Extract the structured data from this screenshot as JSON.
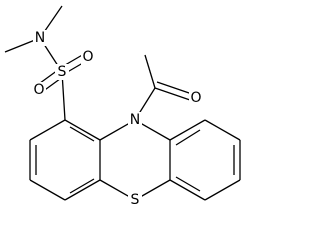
{
  "atoms": [
    {
      "label": "N"
    },
    {
      "label": "S"
    },
    {
      "label": "O"
    },
    {
      "label": "O"
    },
    {
      "label": "N"
    },
    {
      "label": "O"
    },
    {
      "label": "S"
    }
  ]
}
